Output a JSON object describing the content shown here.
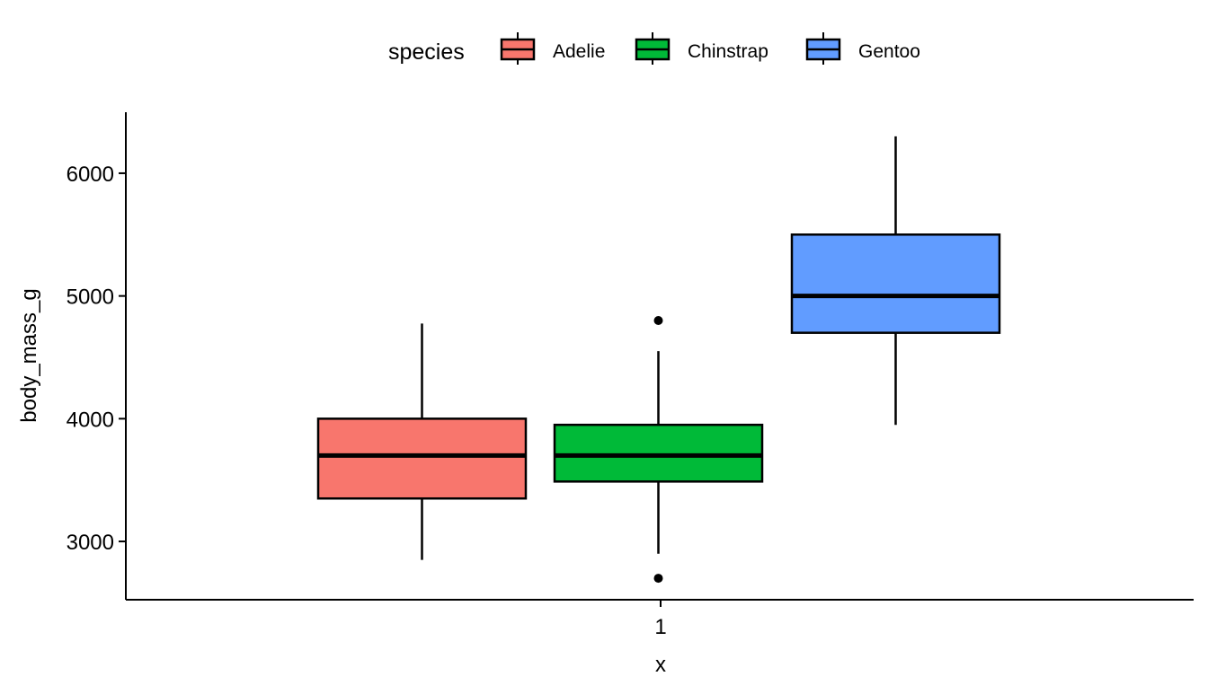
{
  "chart_data": {
    "type": "boxplot",
    "title": "",
    "xlabel": "x",
    "ylabel": "body_mass_g",
    "x_tick_labels": [
      "1"
    ],
    "y_ticks": [
      3000,
      4000,
      5000,
      6000
    ],
    "y_tick_labels": [
      "3000",
      "4000",
      "5000",
      "6000"
    ],
    "ylim": [
      2525,
      6497
    ],
    "grid": false,
    "legend": {
      "title": "species",
      "placement": "top",
      "entries": [
        "Adelie",
        "Chinstrap",
        "Gentoo"
      ]
    },
    "series": [
      {
        "name": "Adelie",
        "color": "#F8766D",
        "whisker_low": 2850,
        "q1": 3350,
        "median": 3700,
        "q3": 4000,
        "whisker_high": 4775,
        "outliers": []
      },
      {
        "name": "Chinstrap",
        "color": "#00BA38",
        "whisker_low": 2900,
        "q1": 3488,
        "median": 3700,
        "q3": 3950,
        "whisker_high": 4550,
        "outliers": [
          2700,
          4800
        ]
      },
      {
        "name": "Gentoo",
        "color": "#619CFF",
        "whisker_low": 3950,
        "q1": 4700,
        "median": 5000,
        "q3": 5500,
        "whisker_high": 6300,
        "outliers": []
      }
    ]
  }
}
